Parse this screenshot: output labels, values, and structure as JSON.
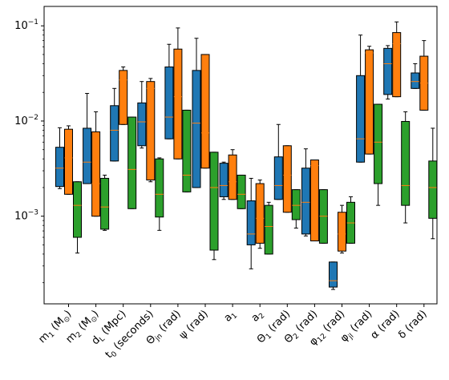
{
  "chart_data": {
    "type": "box",
    "title": "",
    "xlabel": "",
    "ylabel": "",
    "y_scale": "log",
    "ylim": [
      0.00012,
      0.16
    ],
    "y_ticks": [
      {
        "value": 0.001,
        "base": "10",
        "exp": "−3"
      },
      {
        "value": 0.01,
        "base": "10",
        "exp": "−2"
      },
      {
        "value": 0.1,
        "base": "10",
        "exp": "−1"
      }
    ],
    "grid": false,
    "legend": "none",
    "colors": [
      "#1f77b4",
      "#ff7f0e",
      "#2ca02c"
    ],
    "median_color": "#ff7f0e",
    "categories": [
      {
        "label": "m_1 (M_⊙)",
        "parts": [
          {
            "t": "m"
          },
          {
            "t": "1",
            "sub": true
          },
          {
            "t": " (M"
          },
          {
            "t": "⊙",
            "sub": true
          },
          {
            "t": ")"
          }
        ]
      },
      {
        "label": "m_2 (M_⊙)",
        "parts": [
          {
            "t": "m"
          },
          {
            "t": "2",
            "sub": true
          },
          {
            "t": " (M"
          },
          {
            "t": "⊙",
            "sub": true
          },
          {
            "t": ")"
          }
        ]
      },
      {
        "label": "d_L (Mpc)",
        "parts": [
          {
            "t": "d"
          },
          {
            "t": "L",
            "sub": true
          },
          {
            "t": " (Mpc)"
          }
        ]
      },
      {
        "label": "t_0 (seconds)",
        "parts": [
          {
            "t": "t"
          },
          {
            "t": "0",
            "sub": true
          },
          {
            "t": " (seconds)"
          }
        ]
      },
      {
        "label": "Θ_jn (rad)",
        "parts": [
          {
            "t": "Θ"
          },
          {
            "t": "jn",
            "sub": true
          },
          {
            "t": " (rad)"
          }
        ]
      },
      {
        "label": "ψ (rad)",
        "parts": [
          {
            "t": "ψ (rad)"
          }
        ]
      },
      {
        "label": "a_1",
        "parts": [
          {
            "t": "a"
          },
          {
            "t": "1",
            "sub": true
          }
        ]
      },
      {
        "label": "a_2",
        "parts": [
          {
            "t": "a"
          },
          {
            "t": "2",
            "sub": true
          }
        ]
      },
      {
        "label": "Θ_1 (rad)",
        "parts": [
          {
            "t": "Θ"
          },
          {
            "t": "1",
            "sub": true
          },
          {
            "t": " (rad)"
          }
        ]
      },
      {
        "label": "Θ_2 (rad)",
        "parts": [
          {
            "t": "Θ"
          },
          {
            "t": "2",
            "sub": true
          },
          {
            "t": " (rad)"
          }
        ]
      },
      {
        "label": "φ_12 (rad)",
        "parts": [
          {
            "t": "φ"
          },
          {
            "t": "12",
            "sub": true
          },
          {
            "t": " (rad)"
          }
        ]
      },
      {
        "label": "φ_jl (rad)",
        "parts": [
          {
            "t": "φ"
          },
          {
            "t": "jl",
            "sub": true
          },
          {
            "t": " (rad)"
          }
        ]
      },
      {
        "label": "α (rad)",
        "parts": [
          {
            "t": "α (rad)"
          }
        ]
      },
      {
        "label": "δ (rad)",
        "parts": [
          {
            "t": "δ (rad)"
          }
        ]
      }
    ],
    "series": [
      {
        "boxes": [
          {
            "whislo": 0.00195,
            "q1": 0.00205,
            "med": 0.0032,
            "q3": 0.0053,
            "whishi": 0.0085
          },
          {
            "whislo": 0.0022,
            "q1": 0.0022,
            "med": 0.0037,
            "q3": 0.0084,
            "whishi": 0.0195
          },
          {
            "whislo": 0.0038,
            "q1": 0.0038,
            "med": 0.008,
            "q3": 0.0145,
            "whishi": 0.022
          },
          {
            "whislo": 0.0052,
            "q1": 0.0055,
            "med": 0.0098,
            "q3": 0.0155,
            "whishi": 0.026
          },
          {
            "whislo": 0.0065,
            "q1": 0.0065,
            "med": 0.011,
            "q3": 0.037,
            "whishi": 0.064
          },
          {
            "whislo": 0.002,
            "q1": 0.002,
            "med": 0.0095,
            "q3": 0.034,
            "whishi": 0.074
          },
          {
            "whislo": 0.0015,
            "q1": 0.0016,
            "med": 0.0021,
            "q3": 0.0036,
            "whishi": 0.0037
          },
          {
            "whislo": 0.00028,
            "q1": 0.0005,
            "med": 0.00065,
            "q3": 0.00145,
            "whishi": 0.0025
          },
          {
            "whislo": 0.0015,
            "q1": 0.0015,
            "med": 0.0021,
            "q3": 0.0042,
            "whishi": 0.0092
          },
          {
            "whislo": 0.00062,
            "q1": 0.00065,
            "med": 0.0014,
            "q3": 0.0032,
            "whishi": 0.0051
          },
          {
            "whislo": 0.00017,
            "q1": 0.00018,
            "med": 0.00021,
            "q3": 0.00033,
            "whishi": 0.00033
          },
          {
            "whislo": 0.0037,
            "q1": 0.0037,
            "med": 0.0065,
            "q3": 0.03,
            "whishi": 0.08
          },
          {
            "whislo": 0.017,
            "q1": 0.019,
            "med": 0.04,
            "q3": 0.058,
            "whishi": 0.062
          },
          {
            "whislo": 0.022,
            "q1": 0.022,
            "med": 0.026,
            "q3": 0.032,
            "whishi": 0.04
          }
        ]
      },
      {
        "boxes": [
          {
            "whislo": 0.0017,
            "q1": 0.0017,
            "med": 0.0041,
            "q3": 0.0082,
            "whishi": 0.0089
          },
          {
            "whislo": 0.001,
            "q1": 0.001,
            "med": 0.0022,
            "q3": 0.0077,
            "whishi": 0.0125
          },
          {
            "whislo": 0.0092,
            "q1": 0.0092,
            "med": 0.027,
            "q3": 0.034,
            "whishi": 0.037
          },
          {
            "whislo": 0.0023,
            "q1": 0.0024,
            "med": 0.022,
            "q3": 0.026,
            "whishi": 0.028
          },
          {
            "whislo": 0.004,
            "q1": 0.004,
            "med": 0.018,
            "q3": 0.057,
            "whishi": 0.095
          },
          {
            "whislo": 0.0032,
            "q1": 0.0032,
            "med": 0.0075,
            "q3": 0.05,
            "whishi": 0.05
          },
          {
            "whislo": 0.0015,
            "q1": 0.0015,
            "med": 0.0023,
            "q3": 0.0044,
            "whishi": 0.005
          },
          {
            "whislo": 0.00046,
            "q1": 0.00052,
            "med": 0.00095,
            "q3": 0.0022,
            "whishi": 0.0024
          },
          {
            "whislo": 0.0011,
            "q1": 0.0011,
            "med": 0.0027,
            "q3": 0.0055,
            "whishi": 0.0055
          },
          {
            "whislo": 0.00055,
            "q1": 0.00055,
            "med": 0.0034,
            "q3": 0.0039,
            "whishi": 0.0039
          },
          {
            "whislo": 0.00041,
            "q1": 0.00043,
            "med": 0.00065,
            "q3": 0.0011,
            "whishi": 0.0013
          },
          {
            "whislo": 0.0045,
            "q1": 0.0045,
            "med": 0.052,
            "q3": 0.056,
            "whishi": 0.061
          },
          {
            "whislo": 0.018,
            "q1": 0.018,
            "med": 0.065,
            "q3": 0.085,
            "whishi": 0.11
          },
          {
            "whislo": 0.013,
            "q1": 0.013,
            "med": 0.025,
            "q3": 0.048,
            "whishi": 0.07
          }
        ]
      },
      {
        "boxes": [
          {
            "whislo": 0.00041,
            "q1": 0.0006,
            "med": 0.0013,
            "q3": 0.0023,
            "whishi": 0.0023
          },
          {
            "whislo": 0.00071,
            "q1": 0.00073,
            "med": 0.00125,
            "q3": 0.0025,
            "whishi": 0.0027
          },
          {
            "whislo": 0.0012,
            "q1": 0.0012,
            "med": 0.0031,
            "q3": 0.011,
            "whishi": 0.011
          },
          {
            "whislo": 0.00071,
            "q1": 0.00098,
            "med": 0.0017,
            "q3": 0.004,
            "whishi": 0.0041
          },
          {
            "whislo": 0.0018,
            "q1": 0.0018,
            "med": 0.0027,
            "q3": 0.013,
            "whishi": 0.013
          },
          {
            "whislo": 0.00035,
            "q1": 0.00044,
            "med": 0.002,
            "q3": 0.0047,
            "whishi": 0.0047
          },
          {
            "whislo": 0.0012,
            "q1": 0.0012,
            "med": 0.0017,
            "q3": 0.0027,
            "whishi": 0.0027
          },
          {
            "whislo": 0.0004,
            "q1": 0.0004,
            "med": 0.00078,
            "q3": 0.0013,
            "whishi": 0.0014
          },
          {
            "whislo": 0.00075,
            "q1": 0.00092,
            "med": 0.0013,
            "q3": 0.0019,
            "whishi": 0.0019
          },
          {
            "whislo": 0.00052,
            "q1": 0.00052,
            "med": 0.001,
            "q3": 0.0019,
            "whishi": 0.0019
          },
          {
            "whislo": 0.00052,
            "q1": 0.00052,
            "med": 0.00085,
            "q3": 0.0014,
            "whishi": 0.0016
          },
          {
            "whislo": 0.0013,
            "q1": 0.0022,
            "med": 0.006,
            "q3": 0.015,
            "whishi": 0.015
          },
          {
            "whislo": 0.00085,
            "q1": 0.0013,
            "med": 0.0021,
            "q3": 0.0099,
            "whishi": 0.0125
          },
          {
            "whislo": 0.00058,
            "q1": 0.00095,
            "med": 0.002,
            "q3": 0.0038,
            "whishi": 0.0084
          }
        ]
      }
    ]
  }
}
